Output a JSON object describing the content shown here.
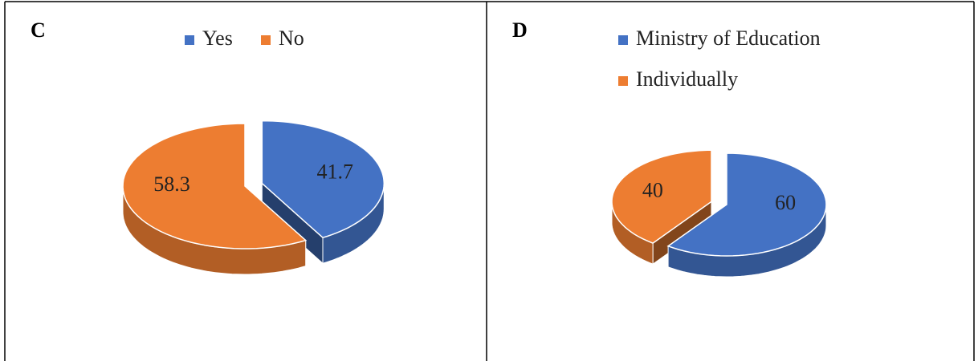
{
  "chart_data": [
    {
      "type": "pie",
      "title": "C",
      "categories": [
        "Yes",
        "No"
      ],
      "values": [
        41.7,
        58.3
      ],
      "colors": [
        "#4472c4",
        "#ed7d31"
      ],
      "explode": [
        0
      ],
      "legend": "top"
    },
    {
      "type": "pie",
      "title": "D",
      "categories": [
        "Ministry of Education",
        "Individually"
      ],
      "values": [
        60,
        40
      ],
      "colors": [
        "#4472c4",
        "#ed7d31"
      ],
      "explode": [
        1
      ],
      "legend": "top-left"
    }
  ]
}
